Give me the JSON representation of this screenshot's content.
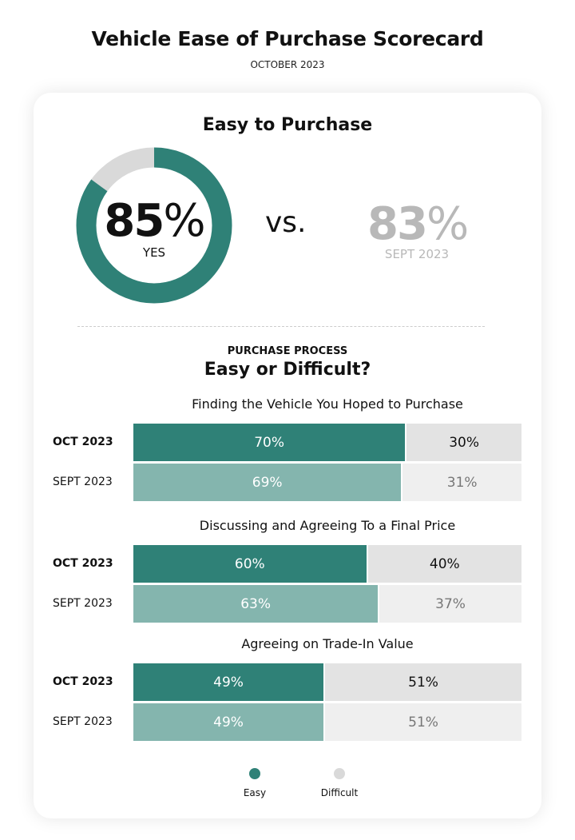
{
  "header": {
    "title": "Vehicle Ease of Purchase Scorecard",
    "subtitle": "OCTOBER 2023"
  },
  "colors": {
    "easy_current": "#2f8177",
    "easy_prev": "#84b5ae",
    "difficult_current": "#e3e3e3",
    "difficult_prev": "#efefef",
    "donut_rest": "#d9d9d9",
    "prev_text": "#b8b8b8"
  },
  "summary": {
    "title": "Easy to Purchase",
    "current_value": "85",
    "current_unit": "%",
    "current_label": "YES",
    "vs_label": "VS.",
    "previous_value": "83",
    "previous_unit": "%",
    "previous_label": "SEPT 2023"
  },
  "process": {
    "kicker": "PURCHASE PROCESS",
    "title": "Easy or Difficult?"
  },
  "chart_data": [
    {
      "type": "pie",
      "subtype": "donut",
      "title": "Easy to Purchase",
      "values": [
        85,
        15
      ],
      "labels": [
        "YES",
        ""
      ],
      "comparison": {
        "label": "SEPT 2023",
        "value": 83
      }
    },
    {
      "type": "bar",
      "subtype": "stacked-horizontal-100",
      "series_names": [
        "Easy",
        "Difficult"
      ],
      "groups": [
        {
          "title": "Finding the Vehicle You Hoped to Purchase",
          "rows": [
            {
              "label": "OCT 2023",
              "current": true,
              "easy": 70,
              "difficult": 30
            },
            {
              "label": "SEPT 2023",
              "current": false,
              "easy": 69,
              "difficult": 31
            }
          ]
        },
        {
          "title": "Discussing and Agreeing To a Final Price",
          "rows": [
            {
              "label": "OCT 2023",
              "current": true,
              "easy": 60,
              "difficult": 40
            },
            {
              "label": "SEPT 2023",
              "current": false,
              "easy": 63,
              "difficult": 37
            }
          ]
        },
        {
          "title": "Agreeing on Trade-In Value",
          "rows": [
            {
              "label": "OCT 2023",
              "current": true,
              "easy": 49,
              "difficult": 51
            },
            {
              "label": "SEPT 2023",
              "current": false,
              "easy": 49,
              "difficult": 51
            }
          ]
        }
      ],
      "legend": {
        "placement": "bottom",
        "items": [
          {
            "label": "Easy",
            "color": "#2f8177"
          },
          {
            "label": "Difficult",
            "color": "#d9d9d9"
          }
        ]
      }
    }
  ]
}
